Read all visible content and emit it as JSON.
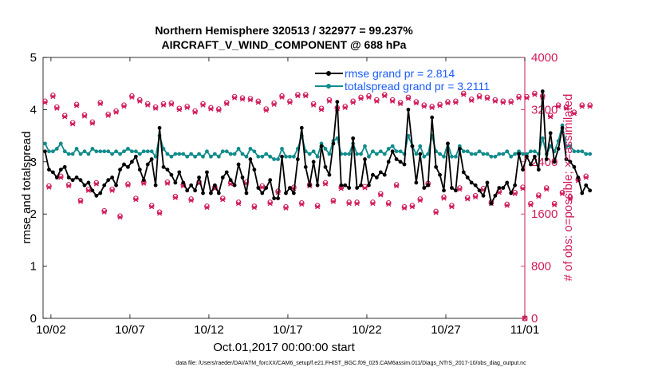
{
  "chart_data": {
    "type": "line",
    "title": "Northern Hemisphere 320513 / 322977 = 99.237%",
    "subtitle": "AIRCRAFT_V_WIND_COMPONENT @ 688 hPa",
    "xlabel": "Oct.01,2017 00:00:00 start",
    "ylabel": "rmse and totalspread",
    "y2label": "# of obs: o=possible; ×=assimilated",
    "footnote": "data file: /Users/raeder/DAI/ATM_forcXX/CAM6_setup/f.e21.FHIST_BGC.f09_025.CAM6assim.011/Diags_NTrS_2017-10/obs_diag_output.nc",
    "xlim": [
      1.5,
      32
    ],
    "ylim": [
      0,
      5
    ],
    "y2lim": [
      0,
      4000
    ],
    "x_ticks": [
      2,
      7,
      12,
      17,
      22,
      27,
      32
    ],
    "x_tick_labels": [
      "10/02",
      "10/07",
      "10/12",
      "10/17",
      "10/22",
      "10/27",
      "11/01"
    ],
    "y_ticks": [
      0,
      1,
      2,
      3,
      4,
      5
    ],
    "y_tick_labels": [
      "0",
      "1",
      "2",
      "3",
      "4",
      "5"
    ],
    "y2_ticks": [
      0,
      800,
      1600,
      2400,
      3200,
      4000
    ],
    "y2_tick_labels": [
      "0",
      "800",
      "1600",
      "2400",
      "3200",
      "4000"
    ],
    "x_start": 1.625,
    "x_step": 0.25,
    "series": [
      {
        "name": "rmse grand pr = 2.814",
        "color": "#000000",
        "axis": "left",
        "values": [
          3.2,
          2.85,
          2.8,
          2.7,
          2.85,
          2.9,
          2.7,
          2.65,
          2.7,
          2.65,
          2.55,
          2.6,
          2.45,
          2.35,
          2.4,
          2.55,
          2.65,
          2.7,
          2.55,
          2.85,
          2.95,
          2.9,
          3.0,
          3.1,
          2.85,
          2.65,
          2.95,
          3.05,
          2.55,
          3.65,
          2.9,
          2.85,
          2.75,
          2.6,
          2.8,
          2.6,
          2.45,
          2.55,
          2.45,
          2.7,
          2.4,
          2.8,
          2.4,
          2.55,
          2.4,
          2.7,
          2.8,
          2.65,
          2.55,
          2.95,
          2.7,
          2.4,
          3.05,
          2.85,
          2.5,
          2.4,
          2.5,
          2.65,
          2.3,
          2.3,
          3.1,
          2.4,
          2.5,
          2.4,
          3.05,
          3.65,
          2.9,
          2.55,
          3.0,
          2.55,
          3.3,
          2.9,
          2.75,
          3.35,
          4.15,
          2.55,
          2.55,
          2.5,
          3.45,
          2.5,
          2.55,
          3.05,
          2.55,
          2.75,
          2.7,
          2.8,
          2.75,
          3.0,
          3.2,
          3.05,
          3.0,
          2.95,
          4.0,
          3.3,
          2.6,
          3.15,
          2.5,
          2.55,
          3.85,
          2.9,
          2.75,
          2.45,
          3.35,
          2.5,
          2.45,
          3.25,
          2.8,
          2.7,
          2.6,
          2.55,
          2.45,
          2.35,
          2.6,
          2.2,
          2.35,
          2.5,
          2.5,
          2.6,
          2.4,
          2.55,
          3.15,
          2.85,
          3.1,
          2.95,
          3.1,
          2.85,
          4.35,
          3.05,
          3.55,
          3.0,
          3.25,
          3.65,
          3.05,
          3.0,
          2.9,
          2.7,
          2.4,
          2.55,
          2.45
        ]
      },
      {
        "name": "totalspread grand pr = 3.2111",
        "color": "#128c8c",
        "axis": "left",
        "values": [
          3.35,
          3.2,
          3.2,
          3.25,
          3.35,
          3.2,
          3.15,
          3.15,
          3.25,
          3.15,
          3.2,
          3.15,
          3.25,
          3.2,
          3.2,
          3.2,
          3.2,
          3.15,
          3.2,
          3.15,
          3.2,
          3.25,
          3.2,
          3.2,
          3.15,
          3.2,
          3.2,
          3.2,
          3.1,
          3.5,
          3.25,
          3.15,
          3.1,
          3.15,
          3.15,
          3.15,
          3.1,
          3.15,
          3.1,
          3.15,
          3.1,
          3.2,
          3.1,
          3.15,
          3.1,
          3.2,
          3.2,
          3.15,
          3.15,
          3.25,
          3.15,
          3.1,
          3.25,
          3.2,
          3.1,
          3.1,
          3.15,
          3.1,
          3.05,
          3.05,
          3.25,
          3.1,
          3.1,
          3.1,
          3.25,
          3.5,
          3.2,
          3.15,
          3.2,
          3.1,
          3.35,
          3.25,
          3.15,
          3.4,
          3.45,
          3.15,
          3.15,
          3.15,
          3.35,
          3.15,
          3.15,
          3.3,
          3.1,
          3.2,
          3.15,
          3.2,
          3.15,
          3.25,
          3.3,
          3.2,
          3.2,
          3.15,
          3.5,
          3.3,
          3.15,
          3.3,
          3.1,
          3.15,
          3.5,
          3.2,
          3.15,
          3.1,
          3.35,
          3.1,
          3.1,
          3.3,
          3.2,
          3.2,
          3.15,
          3.15,
          3.2,
          3.15,
          3.15,
          3.1,
          3.1,
          3.15,
          3.15,
          3.2,
          3.1,
          3.15,
          3.2,
          3.15,
          3.15,
          3.2,
          3.2,
          3.15,
          3.45,
          3.15,
          3.3,
          3.2,
          3.4,
          3.7,
          3.3,
          3.3,
          3.2,
          3.2,
          3.2,
          3.15,
          3.15
        ]
      }
    ],
    "obs_possible": {
      "name": "possible (o)",
      "color": "#d01a5a",
      "axis": "right",
      "values": [
        3330,
        2030,
        3420,
        3240,
        2180,
        3110,
        2050,
        3000,
        3280,
        1810,
        3120,
        1980,
        3010,
        2080,
        3310,
        1650,
        3130,
        1980,
        3180,
        1570,
        3270,
        2060,
        3410,
        1840,
        3350,
        2090,
        3290,
        1730,
        3240,
        1630,
        3290,
        2090,
        3300,
        1870,
        3220,
        2050,
        3250,
        1830,
        3180,
        2090,
        3290,
        1720,
        3230,
        2010,
        3210,
        1840,
        3310,
        2080,
        3400,
        1780,
        3380,
        2090,
        3370,
        1720,
        3330,
        2030,
        3210,
        1780,
        3300,
        1950,
        3410,
        1710,
        3330,
        2010,
        3430,
        1770,
        3430,
        2050,
        3290,
        1730,
        3220,
        2080,
        3350,
        1810,
        3230,
        2010,
        3250,
        1780,
        3330,
        1780,
        3390,
        2020,
        3410,
        1780,
        3350,
        1910,
        3430,
        1770,
        3350,
        2050,
        3310,
        1710,
        3390,
        1730,
        3320,
        1830,
        3270,
        2070,
        3250,
        1640,
        3280,
        1860,
        3320,
        1730,
        3330,
        2000,
        3450,
        1850,
        3360,
        1880,
        3410,
        1990,
        3390,
        1780,
        3350,
        1950,
        3330,
        1750,
        3330,
        1930,
        3400,
        2010,
        3400,
        1760,
        3450,
        1890,
        3410,
        2000,
        3110,
        1760,
        3270,
        1930,
        3240,
        1860,
        3160,
        2130,
        3270,
        2180,
        3270
      ]
    },
    "obs_assimilated": {
      "name": "assimilated (×)",
      "color": "#d01a5a",
      "axis": "right",
      "values": [
        3310,
        2010,
        3400,
        3220,
        2160,
        3090,
        2030,
        2980,
        3260,
        1790,
        3100,
        1960,
        2990,
        2060,
        3290,
        1630,
        3110,
        1960,
        3160,
        1550,
        3250,
        2040,
        3390,
        1820,
        3330,
        2070,
        3270,
        1710,
        3220,
        1610,
        3270,
        2070,
        3280,
        1850,
        3200,
        2030,
        3230,
        1810,
        3160,
        2070,
        3270,
        1700,
        3210,
        1990,
        3190,
        1820,
        3290,
        2060,
        3380,
        1760,
        3360,
        2070,
        3350,
        1700,
        3310,
        2010,
        3190,
        1760,
        3280,
        1930,
        3390,
        1690,
        3310,
        1990,
        3410,
        1750,
        3410,
        2030,
        3270,
        1710,
        3200,
        2060,
        3330,
        1790,
        3210,
        1990,
        3230,
        1760,
        3310,
        1760,
        3370,
        2000,
        3390,
        1760,
        3330,
        1890,
        3410,
        1750,
        3330,
        2030,
        3290,
        1690,
        3370,
        1710,
        3300,
        1810,
        3250,
        2050,
        3230,
        1620,
        3260,
        1840,
        3300,
        1710,
        3310,
        1980,
        3430,
        1830,
        3340,
        1860,
        3390,
        1970,
        3370,
        1760,
        3330,
        1930,
        3310,
        1730,
        3310,
        1910,
        3380,
        1990,
        3380,
        1740,
        3430,
        1870,
        3390,
        1980,
        3090,
        1740,
        3250,
        1910,
        3220,
        1840,
        3140,
        2110,
        3250,
        2160,
        3250
      ]
    },
    "legend_position": "top-right"
  }
}
